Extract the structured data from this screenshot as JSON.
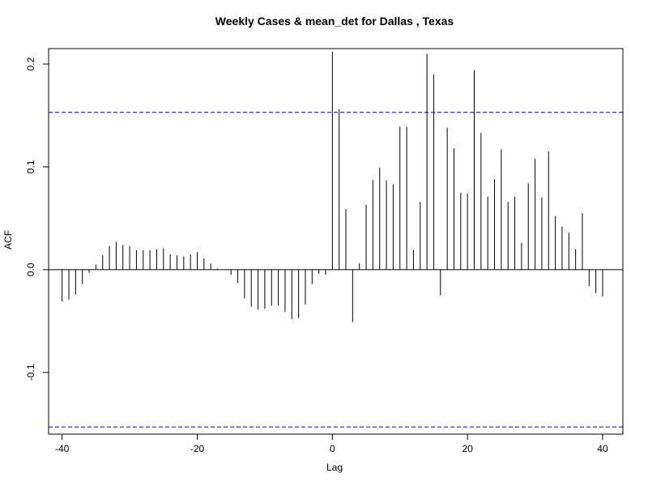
{
  "chart_data": {
    "type": "bar",
    "title": "Weekly Cases & mean_det for Dallas , Texas",
    "xlabel": "Lag",
    "ylabel": "ACF",
    "xlim": [
      -42,
      43
    ],
    "ylim": [
      -0.16,
      0.215
    ],
    "x_ticks": [
      -40,
      -20,
      0,
      20,
      40
    ],
    "x_tick_labels": [
      "-40",
      "-20",
      "0",
      "20",
      "40"
    ],
    "y_ticks": [
      -0.1,
      0.0,
      0.1,
      0.2
    ],
    "y_tick_labels": [
      "-0.1",
      "0.0",
      "0.1",
      "0.2"
    ],
    "confidence_bound": 0.153,
    "confidence_color": "#0000cc",
    "grid": false,
    "lags": [
      -40,
      -39,
      -38,
      -37,
      -36,
      -35,
      -34,
      -33,
      -32,
      -31,
      -30,
      -29,
      -28,
      -27,
      -26,
      -25,
      -24,
      -23,
      -22,
      -21,
      -20,
      -19,
      -18,
      -17,
      -16,
      -15,
      -14,
      -13,
      -12,
      -11,
      -10,
      -9,
      -8,
      -7,
      -6,
      -5,
      -4,
      -3,
      -2,
      -1,
      0,
      1,
      2,
      3,
      4,
      5,
      6,
      7,
      8,
      9,
      10,
      11,
      12,
      13,
      14,
      15,
      16,
      17,
      18,
      19,
      20,
      21,
      22,
      23,
      24,
      25,
      26,
      27,
      28,
      29,
      30,
      31,
      32,
      33,
      34,
      35,
      36,
      37,
      38,
      39,
      40
    ],
    "acf": [
      -0.031,
      -0.029,
      -0.024,
      -0.014,
      -0.003,
      0.005,
      0.014,
      0.023,
      0.027,
      0.024,
      0.023,
      0.019,
      0.019,
      0.019,
      0.02,
      0.021,
      0.015,
      0.014,
      0.013,
      0.015,
      0.017,
      0.011,
      0.006,
      0.001,
      0.0,
      -0.005,
      -0.013,
      -0.028,
      -0.036,
      -0.039,
      -0.038,
      -0.035,
      -0.035,
      -0.041,
      -0.048,
      -0.047,
      -0.034,
      -0.014,
      -0.004,
      -0.005,
      0.212,
      0.156,
      0.059,
      -0.051,
      0.006,
      0.063,
      0.087,
      0.099,
      0.087,
      0.083,
      0.139,
      0.139,
      0.019,
      0.066,
      0.21,
      0.19,
      -0.025,
      0.138,
      0.118,
      0.075,
      0.074,
      0.194,
      0.133,
      0.071,
      0.088,
      0.117,
      0.066,
      0.071,
      0.026,
      0.084,
      0.108,
      0.07,
      0.115,
      0.052,
      0.042,
      0.036,
      0.02,
      0.055,
      -0.016,
      -0.023,
      -0.026
    ]
  }
}
